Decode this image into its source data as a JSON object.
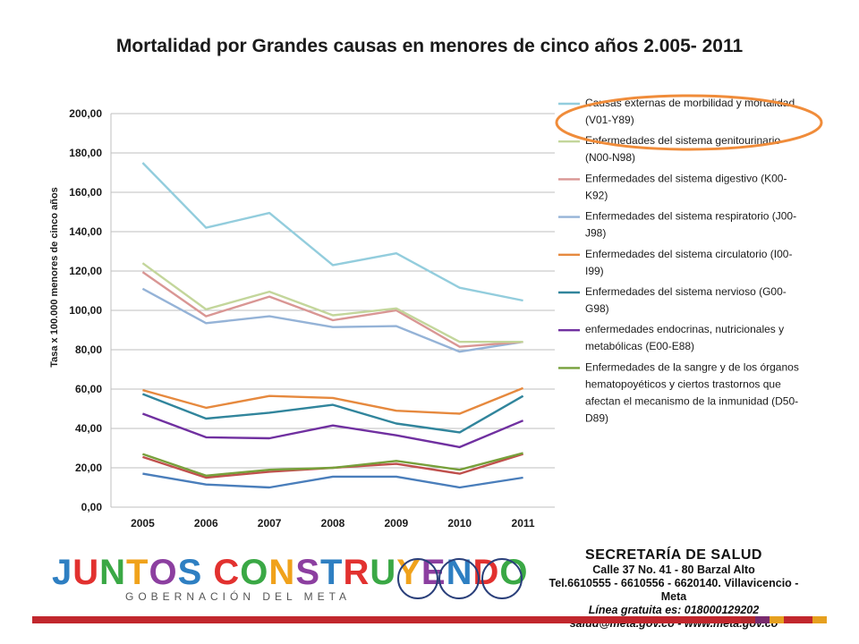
{
  "title": "Mortalidad por Grandes causas en menores de cinco años 2.005- 2011",
  "chart_data": {
    "type": "line",
    "title": "Mortalidad por Grandes causas en menores de cinco años 2.005- 2011",
    "ylabel": "Tasa x 100.000 menores de cinco años",
    "xlabel": "",
    "x": [
      "2005",
      "2006",
      "2007",
      "2008",
      "2009",
      "2010",
      "2011"
    ],
    "ylim": [
      0,
      200
    ],
    "yticks": [
      "0,00",
      "20,00",
      "40,00",
      "60,00",
      "80,00",
      "100,00",
      "120,00",
      "140,00",
      "160,00",
      "180,00",
      "200,00"
    ],
    "grid": "horizontal",
    "legend_position": "right",
    "series": [
      {
        "name": "Causas externas de morbilidad y mortalidad (V01-Y89)",
        "legend_lines": [
          "Causas externas de morbilidad y mortalidad",
          "(V01-Y89)"
        ],
        "color": "#93cddd",
        "values": [
          175,
          142,
          149.5,
          123,
          129,
          111.5,
          105
        ]
      },
      {
        "name": "Enfermedades del sistema genitourinario (N00-N98)",
        "legend_lines": [
          "Enfermedades del sistema genitourinario",
          "(N00-N98)"
        ],
        "color": "#c3d69b",
        "values": [
          124,
          100.5,
          109.5,
          97.5,
          101,
          84,
          84
        ]
      },
      {
        "name": "Enfermedades del sistema digestivo (K00-K92)",
        "legend_lines": [
          "Enfermedades del sistema digestivo (K00-",
          "K92)"
        ],
        "color": "#d99694",
        "values": [
          119.5,
          97,
          107,
          95,
          100,
          81.5,
          84
        ]
      },
      {
        "name": "Enfermedades del sistema respiratorio (J00-J98)",
        "legend_lines": [
          "Enfermedades del sistema respiratorio (J00-",
          "J98)"
        ],
        "color": "#95b3d7",
        "values": [
          111,
          93.5,
          97,
          91.5,
          92,
          79,
          84
        ]
      },
      {
        "name": "Enfermedades del sistema circulatorio (I00-I99)",
        "legend_lines": [
          "Enfermedades del sistema circulatorio (I00-",
          "I99)"
        ],
        "color": "#e6893e",
        "values": [
          59.5,
          50.5,
          56.5,
          55.5,
          49,
          47.5,
          60.5
        ]
      },
      {
        "name": "Enfermedades del sistema nervioso (G00-G98)",
        "legend_lines": [
          "Enfermedades del sistema nervioso (G00-",
          "G98)"
        ],
        "color": "#31859c",
        "values": [
          57.5,
          45,
          48,
          52,
          42.5,
          38,
          56.5
        ]
      },
      {
        "name": "enfermedades endocrinas, nutricionales y metabólicas (E00-E88)",
        "legend_lines": [
          "enfermedades endocrinas, nutricionales y",
          "metabólicas (E00-E88)"
        ],
        "color": "#7030a0",
        "values": [
          47.5,
          35.5,
          35,
          41.5,
          36.5,
          30.5,
          44
        ]
      },
      {
        "name": "Enfermedades de la sangre y de los órganos hematopoyéticos y ciertos trastornos que afectan el mecanismo de la inmunidad (D50-D89)",
        "legend_lines": [
          "Enfermedades de la sangre y de los órganos",
          "hematopoyéticos y ciertos trastornos que",
          "afectan el mecanismo de la inmunidad (D50-",
          "D89)"
        ],
        "color": "#77a03b",
        "values": [
          27,
          16,
          19,
          20,
          23.5,
          19,
          27.5
        ]
      },
      {
        "name": "",
        "color": "#c0504d",
        "values": [
          25.5,
          15,
          18,
          20,
          22,
          17,
          27
        ]
      },
      {
        "name": "",
        "color": "#4a7ebb",
        "values": [
          17,
          11.5,
          10,
          15.5,
          15.5,
          10,
          15
        ]
      }
    ]
  },
  "annotation": {
    "shape": "ellipse",
    "color": "#f08c3a",
    "target": "legend-item-0"
  },
  "footer": {
    "logo_text": "JUNTOS CONSTRUYENDO",
    "logo_letter_colors": [
      "#2e7fc2",
      "#e2312f",
      "#3aa845",
      "#f0a21b",
      "#8c3fa0",
      "#2e7fc2",
      "#e2312f",
      "#3aa845",
      "#f0a21b",
      "#8c3fa0",
      "#2e7fc2",
      "#e2312f",
      "#3aa845",
      "#f0a21b",
      "#8c3fa0",
      "#2e7fc2",
      "#e2312f",
      "#3aa845",
      "#f0a21b"
    ],
    "logo_subtitle": "GOBERNACIÓN DEL META",
    "secretaria": {
      "title": "SECRETARÍA DE SALUD",
      "line1": "Calle 37 No. 41 - 80 Barzal Alto",
      "line2": "Tel.6610555 - 6610556 - 6620140. Villavicencio - Meta",
      "line3": "Línea gratuita es: 018000129202",
      "line4": "salud@meta.gov.co - www.meta.gov.co"
    },
    "strip_colors": [
      "#b3282d",
      "#7a2c6e",
      "#e6a01f",
      "#c1272d",
      "#c1272d",
      "#e6a01f"
    ]
  }
}
